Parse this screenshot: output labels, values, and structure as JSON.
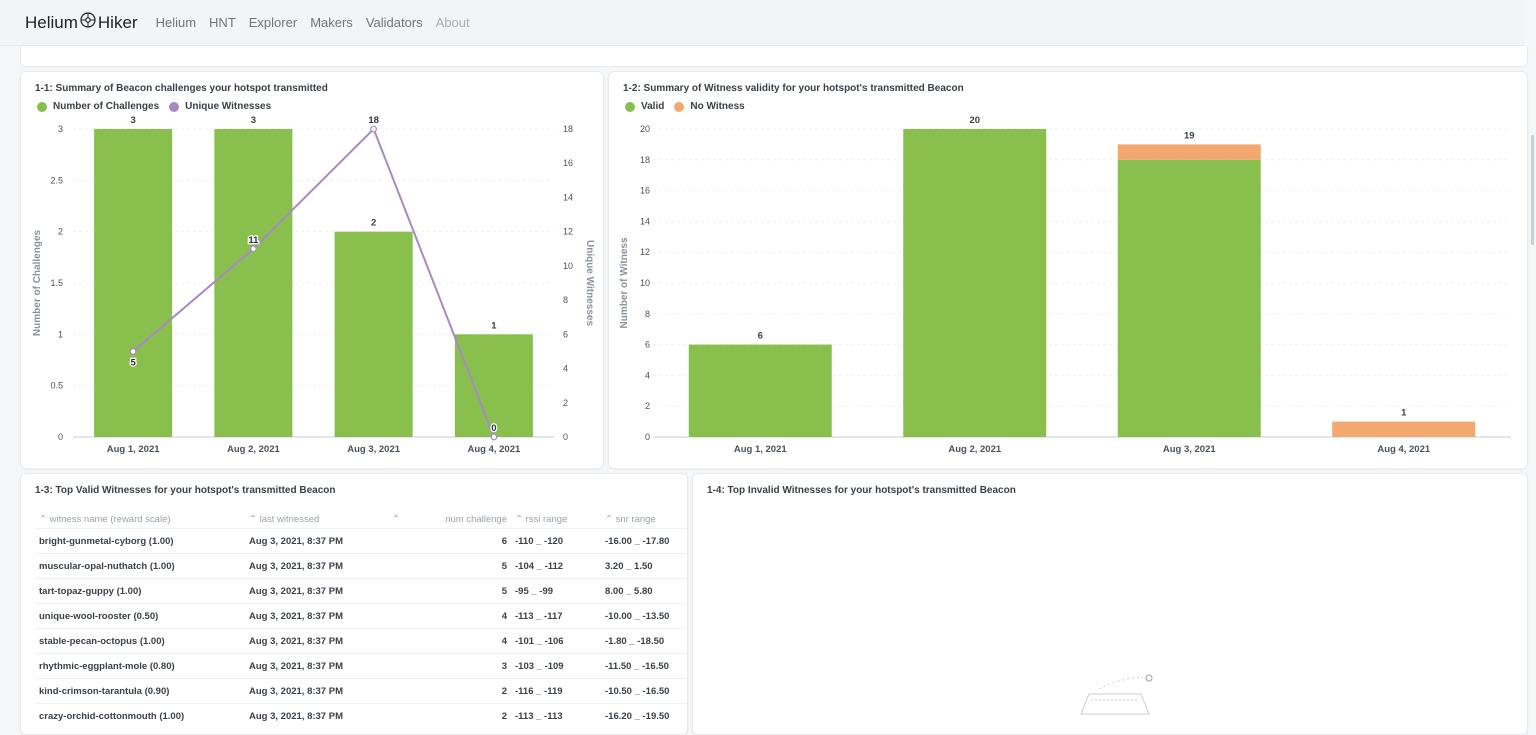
{
  "nav": {
    "brand_left": "Helium",
    "brand_right": "Hiker",
    "links": [
      "Helium",
      "HNT",
      "Explorer",
      "Makers",
      "Validators",
      "About"
    ]
  },
  "card1": {
    "title": "1-1: Summary of Beacon challenges your hotspot transmitted",
    "legend": [
      "Number of Challenges",
      "Unique Witnesses"
    ],
    "colors": {
      "bars": "#88bf4d",
      "line": "#a989c5"
    }
  },
  "card2": {
    "title": "1-2: Summary of Witness validity for your hotspot's transmitted Beacon",
    "legend": [
      "Valid",
      "No Witness"
    ],
    "colors": {
      "valid": "#88bf4d",
      "no_witness": "#f2a86f"
    }
  },
  "card3": {
    "title": "1-3: Top Valid Witnesses for your hotspot's transmitted Beacon",
    "columns": [
      "witness name (reward scale)",
      "last witnessed",
      "num challenge",
      "rssi range",
      "snr range"
    ],
    "rows": [
      [
        "bright-gunmetal-cyborg (1.00)",
        "Aug 3, 2021, 8:37 PM",
        "6",
        "-110 _ -120",
        "-16.00 _ -17.80"
      ],
      [
        "muscular-opal-nuthatch (1.00)",
        "Aug 3, 2021, 8:37 PM",
        "5",
        "-104 _ -112",
        "3.20 _ 1.50"
      ],
      [
        "tart-topaz-guppy (1.00)",
        "Aug 3, 2021, 8:37 PM",
        "5",
        "-95 _ -99",
        "8.00 _ 5.80"
      ],
      [
        "unique-wool-rooster (0.50)",
        "Aug 3, 2021, 8:37 PM",
        "4",
        "-113 _ -117",
        "-10.00 _ -13.50"
      ],
      [
        "stable-pecan-octopus (1.00)",
        "Aug 3, 2021, 8:37 PM",
        "4",
        "-101 _ -106",
        "-1.80 _ -18.50"
      ],
      [
        "rhythmic-eggplant-mole (0.80)",
        "Aug 3, 2021, 8:37 PM",
        "3",
        "-103 _ -109",
        "-11.50 _ -16.50"
      ],
      [
        "kind-crimson-tarantula (0.90)",
        "Aug 3, 2021, 8:37 PM",
        "2",
        "-116 _ -119",
        "-10.50 _ -16.50"
      ],
      [
        "crazy-orchid-cottonmouth (1.00)",
        "Aug 3, 2021, 8:37 PM",
        "2",
        "-113 _ -113",
        "-16.20 _ -19.50"
      ]
    ]
  },
  "card4": {
    "title": "1-4: Top Invalid Witnesses for your hotspot's transmitted Beacon",
    "empty_icon": "empty-state-illustration-icon"
  },
  "chart_data": [
    {
      "type": "bar",
      "categories": [
        "Aug 1, 2021",
        "Aug 2, 2021",
        "Aug 3, 2021",
        "Aug 4, 2021"
      ],
      "series": [
        {
          "name": "Number of Challenges",
          "type": "bar",
          "axis": "left",
          "values": [
            3,
            3,
            2,
            1
          ]
        },
        {
          "name": "Unique Witnesses",
          "type": "line",
          "axis": "right",
          "values": [
            5,
            11,
            18,
            0
          ]
        }
      ],
      "ylabel": "Number of Challenges",
      "ylabel_right": "Unique Witnesses",
      "ylim": [
        0,
        3
      ],
      "ylim_right": [
        0,
        18
      ],
      "yticks": [
        "0",
        "0.5",
        "1",
        "1.5",
        "2",
        "2.5",
        "3"
      ],
      "yticks_right": [
        "0",
        "2",
        "4",
        "6",
        "8",
        "10",
        "12",
        "14",
        "16",
        "18"
      ],
      "grid": true,
      "legend": "top-left"
    },
    {
      "type": "bar",
      "stacked": true,
      "categories": [
        "Aug 1, 2021",
        "Aug 2, 2021",
        "Aug 3, 2021",
        "Aug 4, 2021"
      ],
      "series": [
        {
          "name": "Valid",
          "values": [
            6,
            20,
            18,
            0
          ]
        },
        {
          "name": "No Witness",
          "values": [
            0,
            0,
            1,
            1
          ]
        }
      ],
      "totals": [
        6,
        20,
        19,
        1
      ],
      "ylabel": "Number of Witness",
      "ylim": [
        0,
        20
      ],
      "yticks": [
        "0",
        "2",
        "4",
        "6",
        "8",
        "10",
        "12",
        "14",
        "16",
        "18",
        "20"
      ],
      "grid": true,
      "legend": "top-left"
    }
  ]
}
